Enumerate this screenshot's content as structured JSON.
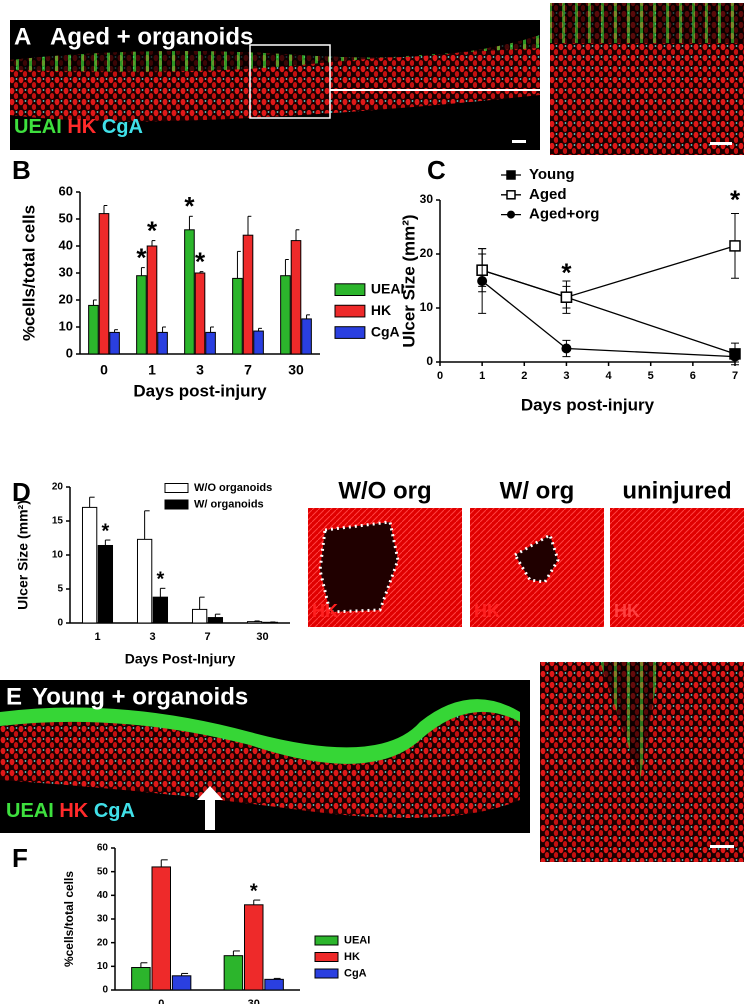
{
  "chart_data": [
    {
      "type": "bar",
      "label": "B",
      "categories": [
        "0",
        "1",
        "3",
        "7",
        "30"
      ],
      "ylabel": "%cells/total cells",
      "xlabel": "Days post-injury",
      "ylim": [
        0,
        60
      ],
      "yticks": [
        0,
        10,
        20,
        30,
        40,
        50,
        60
      ],
      "legend": "right",
      "series": [
        {
          "name": "UEAI",
          "color": "#2cb52c",
          "values": [
            18,
            29,
            46,
            28,
            29
          ],
          "errors": [
            2,
            3,
            5,
            10,
            6
          ],
          "annotations": [
            null,
            "*",
            "*",
            null,
            null
          ]
        },
        {
          "name": "HK",
          "color": "#ee2a2a",
          "values": [
            52,
            40,
            30,
            44,
            42
          ],
          "errors": [
            3,
            2,
            0.5,
            7,
            4
          ],
          "annotations": [
            null,
            "*",
            "*",
            null,
            null
          ]
        },
        {
          "name": "CgA",
          "color": "#2a3fe0",
          "values": [
            8,
            8,
            8,
            8.5,
            13
          ],
          "errors": [
            1,
            2,
            2,
            1,
            1.5
          ],
          "annotations": [
            null,
            null,
            null,
            null,
            null
          ]
        }
      ]
    },
    {
      "type": "line",
      "label": "C",
      "x": [
        1,
        3,
        7
      ],
      "xlim": [
        0,
        7
      ],
      "xticks": [
        0,
        1,
        2,
        3,
        4,
        5,
        6,
        7
      ],
      "ylim": [
        0,
        30
      ],
      "yticks": [
        0,
        10,
        20,
        30
      ],
      "ylabel": "Ulcer Size (mm²)",
      "xlabel": "Days post-injury",
      "legend": "top",
      "series": [
        {
          "name": "Young",
          "color": "#000000",
          "marker": "filled-square",
          "values": [
            17,
            12,
            1.5
          ],
          "errors": [
            4,
            3,
            2
          ],
          "annotations": [
            null,
            null,
            null
          ]
        },
        {
          "name": "Aged",
          "color": "#000000",
          "marker": "open-square",
          "values": [
            17,
            12,
            21.5
          ],
          "errors": [
            3,
            2,
            6
          ],
          "annotations": [
            null,
            "*",
            "*"
          ]
        },
        {
          "name": "Aged+org",
          "color": "#000000",
          "marker": "circle",
          "values": [
            15,
            2.5,
            1
          ],
          "errors": [
            6,
            1.5,
            1
          ],
          "annotations": [
            null,
            null,
            null
          ]
        }
      ]
    },
    {
      "type": "bar",
      "label": "D",
      "categories": [
        "1",
        "3",
        "7",
        "30"
      ],
      "ylabel": "Ulcer Size (mm²)",
      "xlabel": "Days Post-Injury",
      "ylim": [
        0,
        20
      ],
      "yticks": [
        0,
        5,
        10,
        15,
        20
      ],
      "legend": "top",
      "series": [
        {
          "name": "W/O organoids",
          "color": "#ffffff",
          "values": [
            17,
            12.3,
            2,
            0.2
          ],
          "errors": [
            1.5,
            4.2,
            1.8,
            0.1
          ],
          "annotations": [
            null,
            null,
            null,
            null
          ]
        },
        {
          "name": "W/ organoids",
          "color": "#000000",
          "values": [
            11.4,
            3.8,
            0.8,
            0.1
          ],
          "errors": [
            0.8,
            1.3,
            0.5,
            0.05
          ],
          "annotations": [
            "*",
            "*",
            null,
            null
          ]
        }
      ]
    },
    {
      "type": "bar",
      "label": "F",
      "categories": [
        "0",
        "30"
      ],
      "ylabel": "%cells/total cells",
      "ylim": [
        0,
        60
      ],
      "yticks": [
        0,
        10,
        20,
        30,
        40,
        50,
        60
      ],
      "legend": "right",
      "series": [
        {
          "name": "UEAI",
          "color": "#2cb52c",
          "values": [
            9.5,
            14.5
          ],
          "errors": [
            2,
            2
          ],
          "annotations": [
            null,
            null
          ]
        },
        {
          "name": "HK",
          "color": "#ee2a2a",
          "values": [
            52,
            36
          ],
          "errors": [
            3,
            2
          ],
          "annotations": [
            null,
            "*"
          ]
        },
        {
          "name": "CgA",
          "color": "#2a3fe0",
          "values": [
            6,
            4.5
          ],
          "errors": [
            1,
            0.4
          ],
          "annotations": [
            null,
            null
          ]
        }
      ]
    }
  ],
  "images": {
    "A": {
      "label": "A",
      "title": "Aged + organoids",
      "stains": [
        "UEAI",
        "HK",
        "CgA"
      ]
    },
    "D": [
      {
        "title": "W/O org",
        "stain": "HK"
      },
      {
        "title": "W/ org",
        "stain": "HK"
      },
      {
        "title": "uninjured",
        "stain": "HK"
      }
    ],
    "E": {
      "label": "E",
      "title": "Young + organoids",
      "stains": [
        "UEAI",
        "HK",
        "CgA"
      ]
    }
  }
}
